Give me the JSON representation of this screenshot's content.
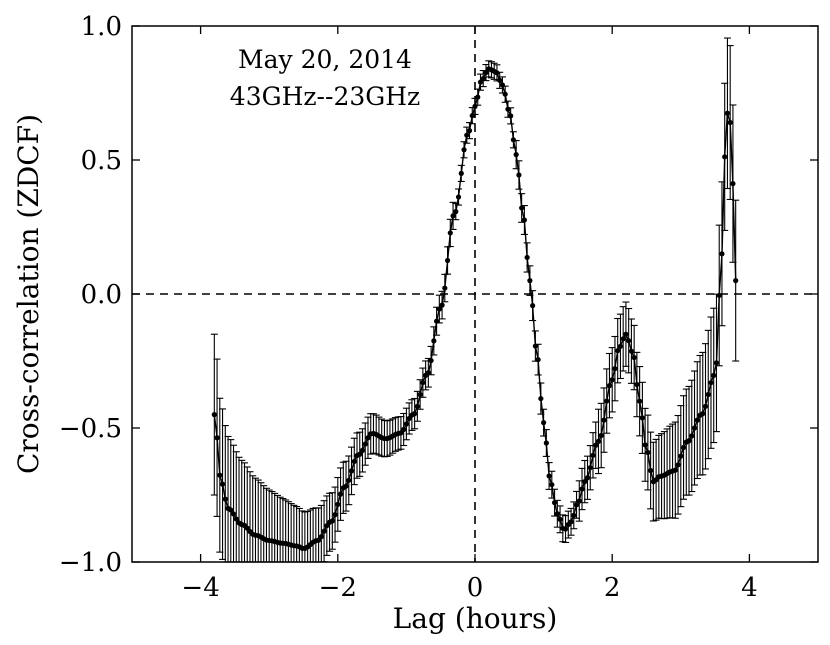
{
  "chart_data": {
    "type": "scatter",
    "title": "",
    "xlabel": "Lag (hours)",
    "ylabel": "Cross-correlation (ZDCF)",
    "xlim": [
      -5,
      5
    ],
    "ylim": [
      -1.0,
      1.0
    ],
    "xticks": [
      -4,
      -2,
      0,
      2,
      4
    ],
    "xtick_labels": [
      "−4",
      "−2",
      "0",
      "2",
      "4"
    ],
    "yticks": [
      -1.0,
      -0.5,
      0.0,
      0.5,
      1.0
    ],
    "ytick_labels": [
      "−1.0",
      "−0.5",
      "0.0",
      "0.5",
      "1.0"
    ],
    "grid": false,
    "reference_lines": {
      "x": 0,
      "y": 0,
      "style": "dashed"
    },
    "annotations": [
      "May 20, 2014",
      "43GHz--23GHz"
    ],
    "series": [
      {
        "style": "black markers with error bars connected by line",
        "anchors_x": [
          -3.8,
          -3.7,
          -3.6,
          -3.4,
          -3.2,
          -3.0,
          -2.8,
          -2.6,
          -2.5,
          -2.3,
          -2.1,
          -1.9,
          -1.7,
          -1.5,
          -1.3,
          -1.1,
          -0.9,
          -0.7,
          -0.5,
          -0.3,
          -0.1,
          0.0,
          0.1,
          0.2,
          0.3,
          0.4,
          0.5,
          0.6,
          0.7,
          0.8,
          0.9,
          1.0,
          1.1,
          1.2,
          1.3,
          1.4,
          1.5,
          1.6,
          1.8,
          2.0,
          2.1,
          2.2,
          2.3,
          2.4,
          2.5,
          2.6,
          2.7,
          2.9,
          3.1,
          3.3,
          3.5,
          3.6,
          3.65,
          3.7,
          3.75,
          3.8
        ],
        "anchors_y": [
          -0.45,
          -0.7,
          -0.8,
          -0.86,
          -0.9,
          -0.92,
          -0.93,
          -0.94,
          -0.95,
          -0.92,
          -0.85,
          -0.72,
          -0.6,
          -0.52,
          -0.54,
          -0.52,
          -0.45,
          -0.3,
          -0.05,
          0.3,
          0.6,
          0.7,
          0.8,
          0.84,
          0.83,
          0.78,
          0.68,
          0.52,
          0.3,
          0.05,
          -0.22,
          -0.48,
          -0.7,
          -0.82,
          -0.88,
          -0.85,
          -0.78,
          -0.7,
          -0.55,
          -0.32,
          -0.2,
          -0.15,
          -0.22,
          -0.4,
          -0.58,
          -0.7,
          -0.68,
          -0.66,
          -0.55,
          -0.45,
          -0.3,
          0.15,
          0.55,
          0.74,
          0.45,
          0.05
        ],
        "sample_step": 0.04,
        "y_error_range": [
          0.05,
          0.3
        ]
      }
    ]
  }
}
